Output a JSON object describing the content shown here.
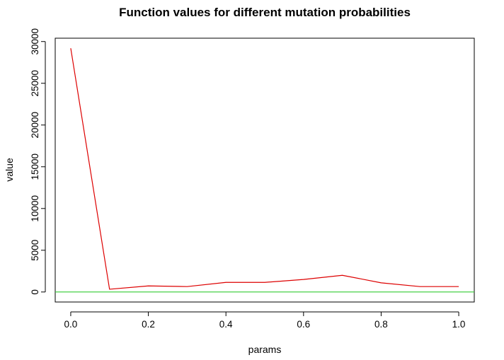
{
  "chart_data": {
    "type": "line",
    "title": "Function values for different mutation probabilities",
    "xlabel": "params",
    "ylabel": "value",
    "x": [
      0.0,
      0.1,
      0.2,
      0.3,
      0.4,
      0.5,
      0.6,
      0.7,
      0.8,
      0.9,
      1.0
    ],
    "series": [
      {
        "color": "#dd0000",
        "values": [
          29200,
          330,
          730,
          650,
          1150,
          1150,
          1500,
          2000,
          1100,
          650,
          650
        ]
      }
    ],
    "reference_lines": [
      {
        "orientation": "horizontal",
        "y": 0,
        "color": "#33cc33"
      }
    ],
    "xlim": [
      -0.04,
      1.04
    ],
    "ylim": [
      -1200,
      30400
    ],
    "x_ticks": [
      0.0,
      0.2,
      0.4,
      0.6,
      0.8,
      1.0
    ],
    "x_tick_labels": [
      "0.0",
      "0.2",
      "0.4",
      "0.6",
      "0.8",
      "1.0"
    ],
    "y_ticks": [
      0,
      5000,
      10000,
      15000,
      20000,
      25000,
      30000
    ],
    "y_tick_labels": [
      "0",
      "5000",
      "10000",
      "15000",
      "20000",
      "25000",
      "30000"
    ],
    "grid": false,
    "legend": "none"
  }
}
